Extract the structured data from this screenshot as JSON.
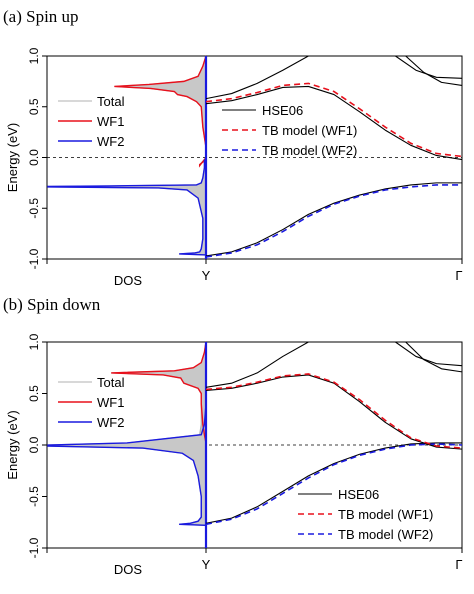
{
  "chart_data": [
    {
      "type": "line",
      "title": "(a) Spin up",
      "ylabel": "Energy (eV)",
      "ylim": [
        -1.0,
        1.0
      ],
      "yticks": [
        "-1.0",
        "-0.5",
        "0.0",
        "0.5",
        "1.0"
      ],
      "dos_label": "DOS",
      "kpoint_labels": [
        "Y",
        "Γ"
      ],
      "fermi_level": 0.0,
      "dos_legend": [
        {
          "label": "Total",
          "color": "#b0b0b0"
        },
        {
          "label": "WF1",
          "color": "#e8101c"
        },
        {
          "label": "WF2",
          "color": "#1a1adf"
        }
      ],
      "band_legend": [
        {
          "label": "HSE06",
          "color": "#000000",
          "dash": false
        },
        {
          "label": "TB model (WF1)",
          "color": "#e8101c",
          "dash": true
        },
        {
          "label": "TB model (WF2)",
          "color": "#1a1adf",
          "dash": true
        }
      ],
      "dos": {
        "energy": [
          -1.0,
          -0.96,
          -0.95,
          -0.94,
          -0.93,
          -0.9,
          -0.8,
          -0.6,
          -0.4,
          -0.32,
          -0.3,
          -0.29,
          -0.285,
          -0.28,
          -0.27,
          -0.25,
          -0.2,
          -0.1,
          -0.02,
          -0.07,
          -0.08,
          0.0,
          0.1,
          0.3,
          0.5,
          0.55,
          0.6,
          0.62,
          0.65,
          0.68,
          0.7,
          0.72,
          0.75,
          0.8,
          0.9,
          1.0
        ],
        "wf1": [
          0,
          0,
          0,
          0,
          0,
          0,
          0,
          0,
          0,
          0,
          0,
          0,
          0,
          0,
          0,
          0,
          0,
          0,
          0,
          0.04,
          0.04,
          0,
          0,
          0.02,
          0.03,
          0.06,
          0.12,
          0.18,
          0.2,
          0.35,
          0.58,
          0.36,
          0.14,
          0.05,
          0.02,
          0
        ],
        "wf2": [
          0,
          0,
          0.17,
          0.07,
          0.04,
          0.03,
          0.02,
          0.02,
          0.05,
          0.12,
          0.3,
          1.0,
          1.0,
          0.6,
          0.06,
          0.03,
          0.02,
          0.01,
          0.01,
          0,
          0,
          0,
          0,
          0,
          0,
          0,
          0,
          0,
          0,
          0,
          0,
          0,
          0,
          0,
          0,
          0
        ]
      },
      "bands": {
        "k": [
          0,
          0.1,
          0.2,
          0.3,
          0.4,
          0.5,
          0.6,
          0.7,
          0.8,
          0.9,
          1.0
        ],
        "hse_valence": [
          -0.97,
          -0.93,
          -0.84,
          -0.71,
          -0.56,
          -0.45,
          -0.37,
          -0.31,
          -0.27,
          -0.25,
          -0.25
        ],
        "tb_wf2": [
          -0.98,
          -0.94,
          -0.86,
          -0.73,
          -0.58,
          -0.46,
          -0.38,
          -0.32,
          -0.29,
          -0.27,
          -0.27
        ],
        "hse_conduction": [
          0.53,
          0.56,
          0.62,
          0.69,
          0.7,
          0.62,
          0.45,
          0.27,
          0.12,
          0.02,
          -0.02
        ],
        "tb_wf1": [
          0.55,
          0.58,
          0.64,
          0.71,
          0.73,
          0.65,
          0.48,
          0.3,
          0.14,
          0.04,
          0.01
        ],
        "hse_upper_a": [
          0.58,
          0.63,
          0.73,
          0.86,
          1.0
        ],
        "hse_upper_b_x": [
          0.78,
          0.85,
          0.92,
          1.0
        ],
        "hse_upper_b": [
          1.0,
          0.84,
          0.74,
          0.71
        ],
        "hse_upper_c_x": [
          0.74,
          0.82,
          0.9,
          1.0
        ],
        "hse_upper_c": [
          1.0,
          0.86,
          0.79,
          0.78
        ]
      }
    },
    {
      "type": "line",
      "title": "(b) Spin down",
      "ylabel": "Energy (eV)",
      "ylim": [
        -1.0,
        1.0
      ],
      "yticks": [
        "-1.0",
        "-0.5",
        "0.0",
        "0.5",
        "1.0"
      ],
      "dos_label": "DOS",
      "kpoint_labels": [
        "Y",
        "Γ"
      ],
      "fermi_level": 0.0,
      "dos_legend": [
        {
          "label": "Total",
          "color": "#b0b0b0"
        },
        {
          "label": "WF1",
          "color": "#e8101c"
        },
        {
          "label": "WF2",
          "color": "#1a1adf"
        }
      ],
      "band_legend": [
        {
          "label": "HSE06",
          "color": "#000000",
          "dash": false
        },
        {
          "label": "TB model (WF1)",
          "color": "#e8101c",
          "dash": true
        },
        {
          "label": "TB model (WF2)",
          "color": "#1a1adf",
          "dash": true
        }
      ],
      "dos": {
        "energy": [
          -1.0,
          -0.78,
          -0.77,
          -0.76,
          -0.74,
          -0.7,
          -0.5,
          -0.3,
          -0.15,
          -0.08,
          -0.03,
          -0.01,
          0.0,
          0.02,
          0.1,
          0.2,
          0.4,
          0.5,
          0.55,
          0.6,
          0.65,
          0.68,
          0.7,
          0.72,
          0.75,
          0.8,
          0.9,
          1.0
        ],
        "wf1": [
          0,
          0,
          0,
          0,
          0,
          0,
          0,
          0,
          0,
          0,
          0,
          0,
          0,
          0,
          0.01,
          0.02,
          0.03,
          0.03,
          0.05,
          0.14,
          0.16,
          0.27,
          0.6,
          0.2,
          0.08,
          0.03,
          0.01,
          0
        ],
        "wf2": [
          0,
          0,
          0.17,
          0.1,
          0.05,
          0.03,
          0.03,
          0.05,
          0.08,
          0.15,
          0.4,
          1.0,
          1.0,
          0.5,
          0.03,
          0.01,
          0,
          0,
          0,
          0,
          0,
          0,
          0,
          0,
          0,
          0,
          0,
          0
        ]
      },
      "bands": {
        "k": [
          0,
          0.1,
          0.2,
          0.3,
          0.4,
          0.5,
          0.6,
          0.7,
          0.8,
          0.9,
          1.0
        ],
        "hse_valence": [
          -0.76,
          -0.71,
          -0.6,
          -0.45,
          -0.3,
          -0.18,
          -0.09,
          -0.03,
          0.01,
          0.02,
          0.02
        ],
        "tb_wf2": [
          -0.77,
          -0.72,
          -0.62,
          -0.47,
          -0.32,
          -0.19,
          -0.1,
          -0.04,
          0.0,
          0.01,
          0.0
        ],
        "hse_conduction": [
          0.53,
          0.55,
          0.6,
          0.66,
          0.68,
          0.6,
          0.42,
          0.22,
          0.06,
          -0.02,
          -0.04
        ],
        "tb_wf1": [
          0.54,
          0.56,
          0.61,
          0.67,
          0.69,
          0.61,
          0.44,
          0.24,
          0.07,
          -0.01,
          -0.03
        ],
        "hse_upper_a": [
          0.56,
          0.6,
          0.7,
          0.86,
          1.0
        ],
        "hse_upper_b_x": [
          0.78,
          0.85,
          0.92,
          1.0
        ],
        "hse_upper_b": [
          1.0,
          0.83,
          0.74,
          0.71
        ],
        "hse_upper_c_x": [
          0.74,
          0.82,
          0.9,
          1.0
        ],
        "hse_upper_c": [
          1.0,
          0.86,
          0.79,
          0.77
        ]
      }
    }
  ]
}
